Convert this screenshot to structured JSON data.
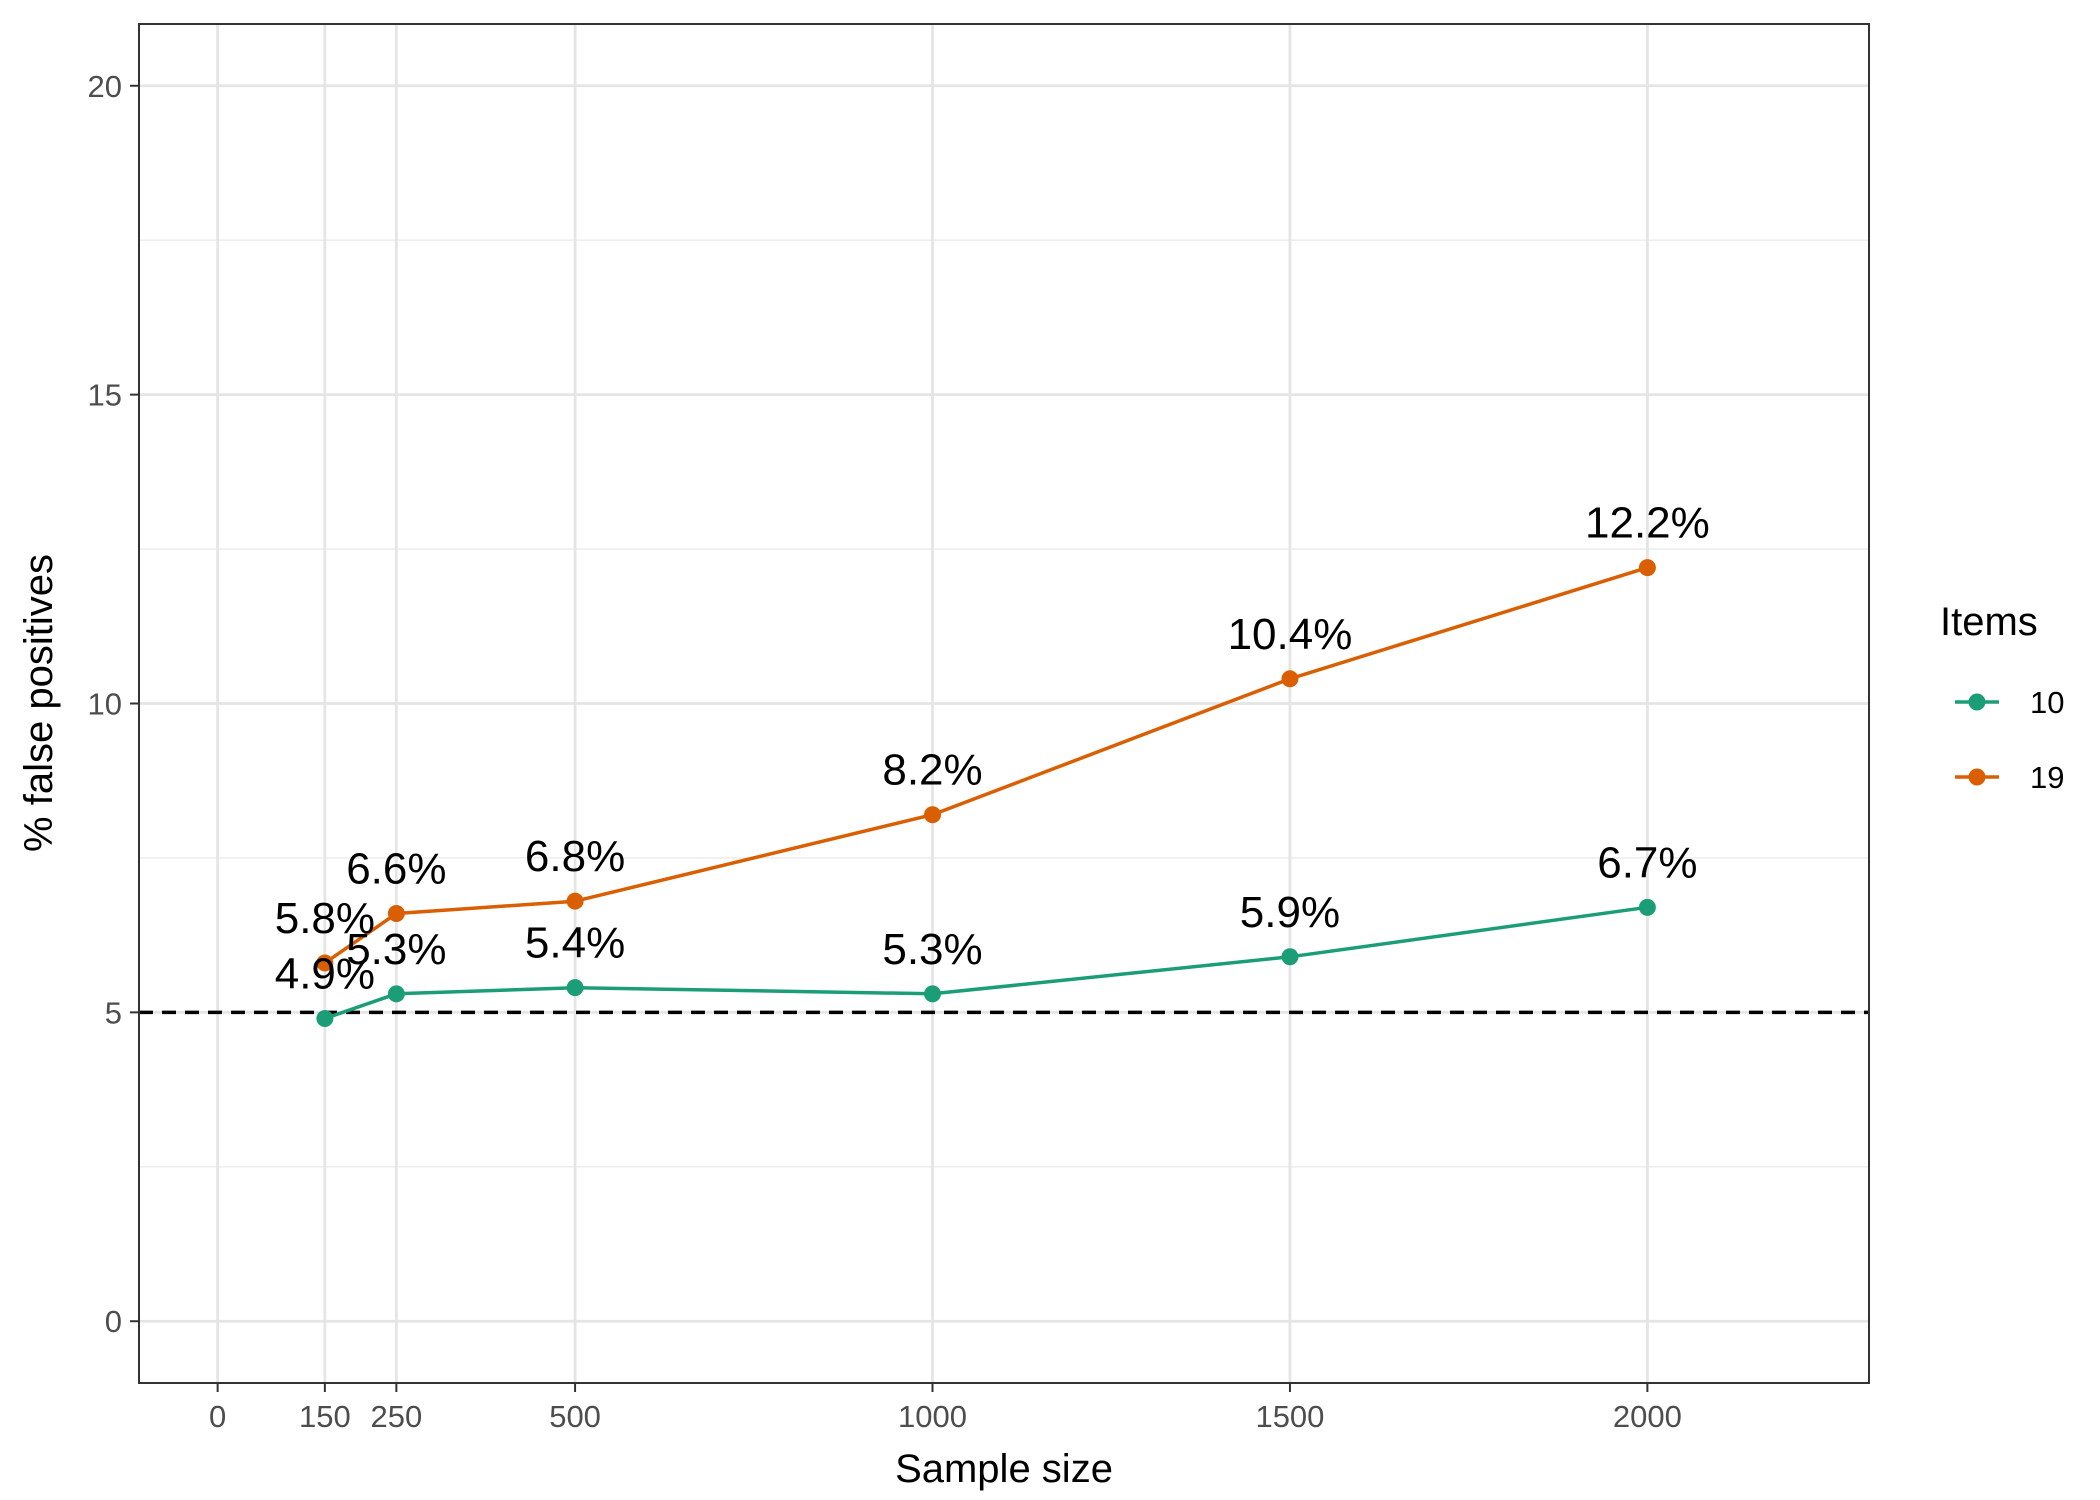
{
  "chart_data": {
    "type": "line",
    "title": "",
    "xlabel": "Sample size",
    "ylabel": "% false positives",
    "xlim": [
      -110,
      2310
    ],
    "ylim": [
      -1,
      21
    ],
    "x_ticks": [
      0,
      150,
      250,
      500,
      1000,
      1500,
      2000
    ],
    "x_tick_labels": [
      "0",
      "150",
      "250",
      "500",
      "1000",
      "1500",
      "2000"
    ],
    "y_ticks": [
      0,
      5,
      10,
      15,
      20
    ],
    "y_tick_labels": [
      "0",
      "5",
      "10",
      "15",
      "20"
    ],
    "y_minor_ticks": [
      2.5,
      7.5,
      12.5,
      17.5
    ],
    "grid": true,
    "reference_line": {
      "y": 5,
      "style": "dashed",
      "color": "#000000"
    },
    "legend": {
      "title": "Items",
      "position": "right"
    },
    "series": [
      {
        "name": "10",
        "color": "#1b9e77",
        "x": [
          150,
          250,
          500,
          1000,
          1500,
          2000
        ],
        "values": [
          4.9,
          5.3,
          5.4,
          5.3,
          5.9,
          6.7
        ],
        "labels": [
          "4.9%",
          "5.3%",
          "5.4%",
          "5.3%",
          "5.9%",
          "6.7%"
        ]
      },
      {
        "name": "19",
        "color": "#d95f02",
        "x": [
          150,
          250,
          500,
          1000,
          1500,
          2000
        ],
        "values": [
          5.8,
          6.6,
          6.8,
          8.2,
          10.4,
          12.2
        ],
        "labels": [
          "5.8%",
          "6.6%",
          "6.8%",
          "8.2%",
          "10.4%",
          "12.2%"
        ]
      }
    ]
  }
}
